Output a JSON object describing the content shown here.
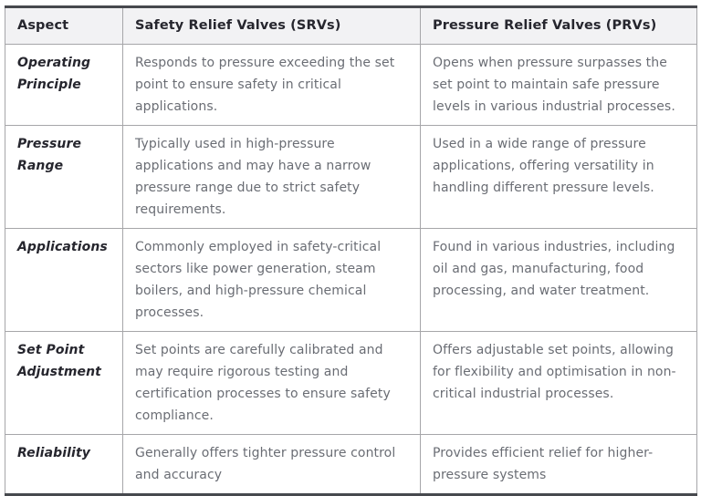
{
  "table": {
    "columns": [
      {
        "label": "Aspect"
      },
      {
        "label": "Safety Relief Valves (SRVs)"
      },
      {
        "label": "Pressure Relief Valves (PRVs)"
      }
    ],
    "rows": [
      {
        "aspect": "Operating Principle",
        "srv": "Responds to pressure exceeding the set point to ensure safety in critical applications.",
        "prv": "Opens when pressure surpasses the set point to maintain safe pressure levels in various industrial processes."
      },
      {
        "aspect": "Pressure Range",
        "srv": "Typically used in high-pressure applications and may have a narrow pressure range due to strict safety requirements.",
        "prv": "Used in a wide range of pressure applications, offering versatility in handling different pressure levels."
      },
      {
        "aspect": "Applications",
        "srv": "Commonly employed in safety-critical sectors like power generation, steam boilers, and high-pressure chemical processes.",
        "prv": "Found in various industries, including oil and gas, manufacturing, food processing, and water treatment."
      },
      {
        "aspect": "Set Point Adjustment",
        "srv": "Set points are carefully calibrated and may require rigorous testing and certification processes to ensure safety compliance.",
        "prv": "Offers adjustable set points, allowing for flexibility and optimisation in non-critical industrial processes."
      },
      {
        "aspect": "Reliability",
        "srv": "Generally offers tighter pressure control and accuracy",
        "prv": "Provides efficient relief for higher-pressure systems"
      }
    ]
  },
  "colors": {
    "header_background": "#f2f2f4",
    "header_text": "#26262e",
    "body_text": "#6a6d74",
    "aspect_text": "#26262e",
    "grid_border": "#a6a6a9",
    "heavy_border": "#47494e",
    "page_background": "#ffffff"
  }
}
